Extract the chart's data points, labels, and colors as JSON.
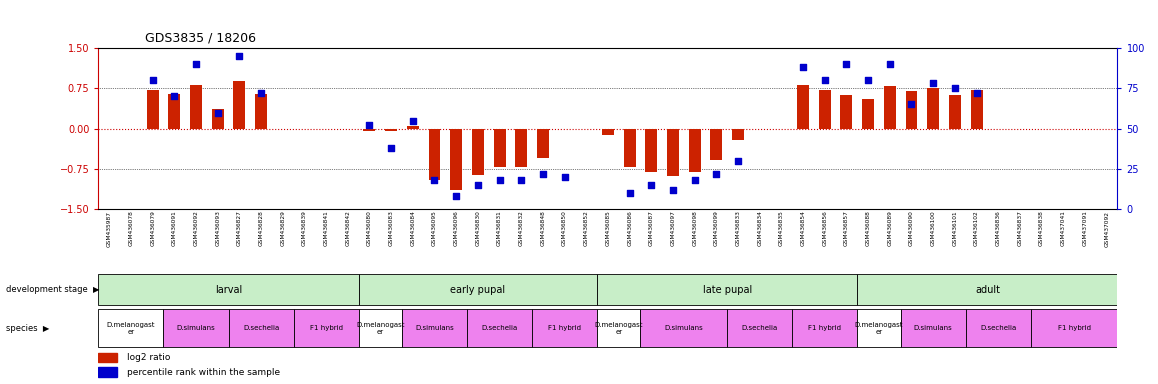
{
  "title": "GDS3835 / 18206",
  "ylim": [
    -1.5,
    1.5
  ],
  "yticks_left": [
    -1.5,
    -0.75,
    0,
    0.75,
    1.5
  ],
  "yticks_right": [
    0,
    25,
    50,
    75,
    100
  ],
  "right_y_color": "#0000cc",
  "left_y_color": "#cc0000",
  "bar_color": "#cc2200",
  "dot_color": "#0000cc",
  "hline_red_color": "#cc0000",
  "samples": [
    "GSM435987",
    "GSM436078",
    "GSM436079",
    "GSM436091",
    "GSM436092",
    "GSM436093",
    "GSM436827",
    "GSM436828",
    "GSM436829",
    "GSM436839",
    "GSM436841",
    "GSM436842",
    "GSM436080",
    "GSM436083",
    "GSM436084",
    "GSM436095",
    "GSM436096",
    "GSM436830",
    "GSM436831",
    "GSM436832",
    "GSM436848",
    "GSM436850",
    "GSM436852",
    "GSM436085",
    "GSM436086",
    "GSM436087",
    "GSM436097",
    "GSM436098",
    "GSM436099",
    "GSM436833",
    "GSM436834",
    "GSM436835",
    "GSM436854",
    "GSM436856",
    "GSM436857",
    "GSM436088",
    "GSM436089",
    "GSM436090",
    "GSM436100",
    "GSM436101",
    "GSM436102",
    "GSM436836",
    "GSM436837",
    "GSM436838",
    "GSM437041",
    "GSM437091",
    "GSM437092"
  ],
  "log2_values": [
    0.0,
    0.0,
    0.72,
    0.65,
    0.82,
    0.36,
    0.88,
    0.65,
    0.0,
    0.0,
    0.0,
    0.0,
    -0.05,
    -0.05,
    0.05,
    -0.95,
    -1.15,
    -0.87,
    -0.72,
    -0.72,
    -0.55,
    0.0,
    0.0,
    -0.12,
    -0.72,
    -0.8,
    -0.88,
    -0.8,
    -0.58,
    -0.22,
    0.0,
    0.0,
    0.82,
    0.72,
    0.62,
    0.55,
    0.8,
    0.7,
    0.75,
    0.62,
    0.72,
    0.0,
    0.0,
    0.0,
    0.0,
    0.0,
    0.0
  ],
  "pct_values": [
    null,
    null,
    80,
    70,
    90,
    60,
    95,
    72,
    null,
    null,
    null,
    null,
    52,
    38,
    55,
    18,
    8,
    15,
    18,
    18,
    22,
    20,
    null,
    null,
    10,
    15,
    12,
    18,
    22,
    30,
    null,
    null,
    88,
    80,
    90,
    80,
    90,
    65,
    78,
    75,
    72,
    null,
    null,
    null,
    null,
    null,
    null
  ],
  "dev_stages": [
    {
      "label": "larval",
      "start": 0,
      "end": 12,
      "color": "#c8eec8"
    },
    {
      "label": "early pupal",
      "start": 12,
      "end": 23,
      "color": "#c8eec8"
    },
    {
      "label": "late pupal",
      "start": 23,
      "end": 35,
      "color": "#c8eec8"
    },
    {
      "label": "adult",
      "start": 35,
      "end": 47,
      "color": "#c8eec8"
    }
  ],
  "species_groups": [
    {
      "label": "D.melanogast\ner",
      "start": 0,
      "end": 3,
      "color": "#ffffff"
    },
    {
      "label": "D.simulans",
      "start": 3,
      "end": 6,
      "color": "#ee82ee"
    },
    {
      "label": "D.sechelia",
      "start": 6,
      "end": 9,
      "color": "#ee82ee"
    },
    {
      "label": "F1 hybrid",
      "start": 9,
      "end": 12,
      "color": "#ee82ee"
    },
    {
      "label": "D.melanogast\ner",
      "start": 12,
      "end": 14,
      "color": "#ffffff"
    },
    {
      "label": "D.simulans",
      "start": 14,
      "end": 17,
      "color": "#ee82ee"
    },
    {
      "label": "D.sechelia",
      "start": 17,
      "end": 20,
      "color": "#ee82ee"
    },
    {
      "label": "F1 hybrid",
      "start": 20,
      "end": 23,
      "color": "#ee82ee"
    },
    {
      "label": "D.melanogast\ner",
      "start": 23,
      "end": 25,
      "color": "#ffffff"
    },
    {
      "label": "D.simulans",
      "start": 25,
      "end": 29,
      "color": "#ee82ee"
    },
    {
      "label": "D.sechelia",
      "start": 29,
      "end": 32,
      "color": "#ee82ee"
    },
    {
      "label": "F1 hybrid",
      "start": 32,
      "end": 35,
      "color": "#ee82ee"
    },
    {
      "label": "D.melanogast\ner",
      "start": 35,
      "end": 37,
      "color": "#ffffff"
    },
    {
      "label": "D.simulans",
      "start": 37,
      "end": 40,
      "color": "#ee82ee"
    },
    {
      "label": "D.sechelia",
      "start": 40,
      "end": 43,
      "color": "#ee82ee"
    },
    {
      "label": "F1 hybrid",
      "start": 43,
      "end": 47,
      "color": "#ee82ee"
    }
  ],
  "legend": [
    {
      "label": "log2 ratio",
      "color": "#cc2200"
    },
    {
      "label": "percentile rank within the sample",
      "color": "#0000cc"
    }
  ],
  "fig_width": 11.58,
  "fig_height": 3.84,
  "dpi": 100
}
